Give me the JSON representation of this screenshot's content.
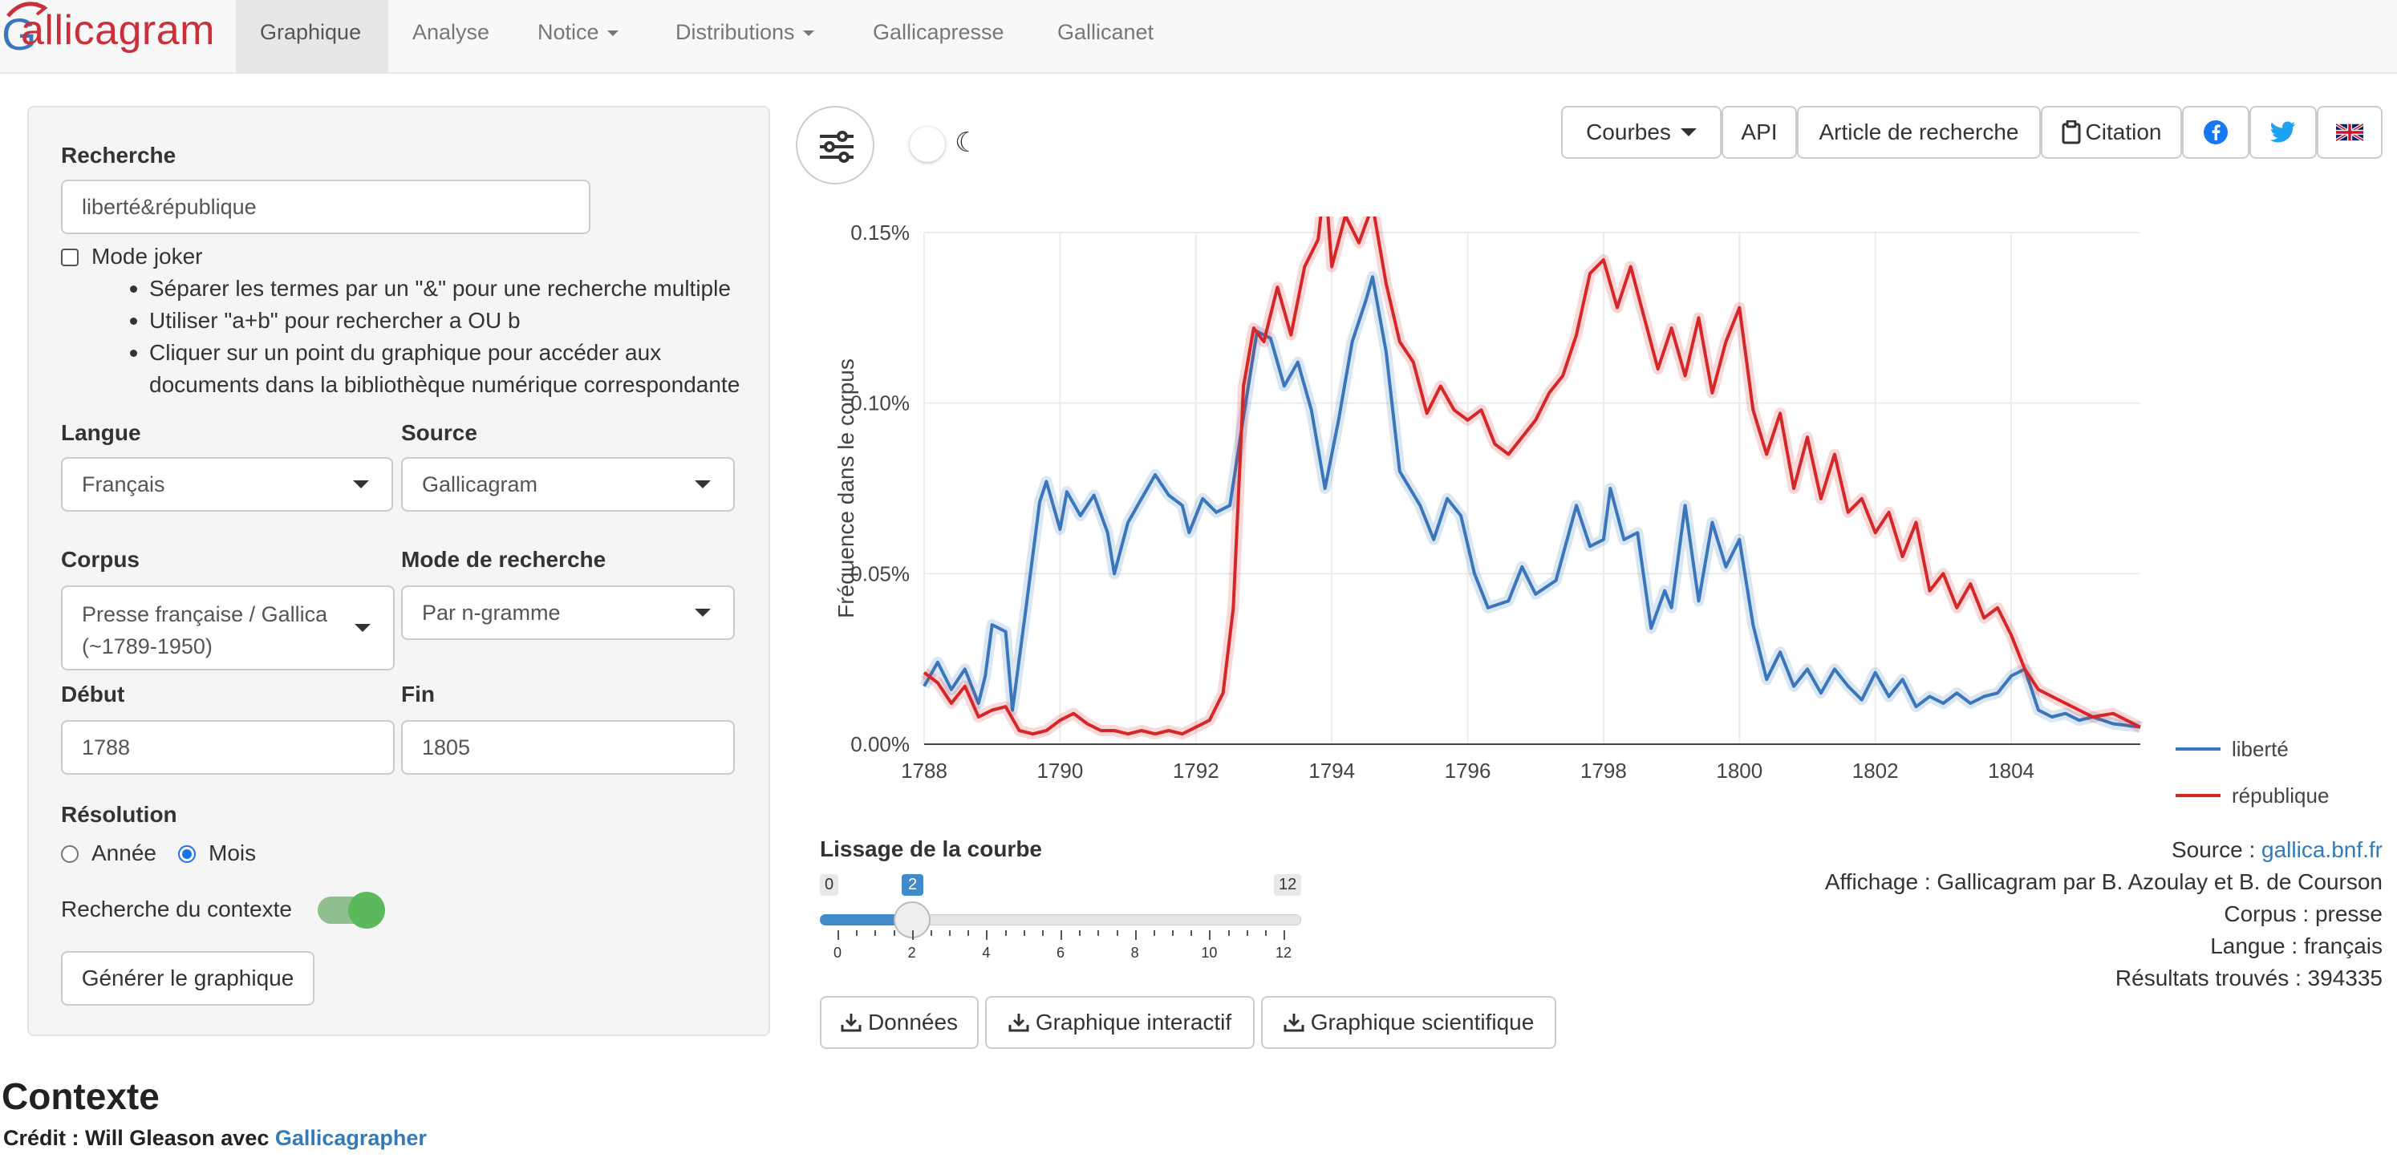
{
  "navbar": {
    "brand": "Gallicagram",
    "items": [
      {
        "label": "Graphique",
        "active": true
      },
      {
        "label": "Analyse"
      },
      {
        "label": "Notice",
        "dropdown": true
      },
      {
        "label": "Distributions",
        "dropdown": true
      },
      {
        "label": "Gallicapresse"
      },
      {
        "label": "Gallicanet"
      }
    ]
  },
  "sidebar": {
    "search_label": "Recherche",
    "search_value": "liberté&république",
    "joker_label": "Mode joker",
    "help": [
      "Séparer les termes par un \"&\" pour une recherche multiple",
      "Utiliser \"a+b\" pour rechercher a OU b",
      "Cliquer sur un point du graphique pour accéder aux",
      "documents dans la bibliothèque numérique correspondante"
    ],
    "langue_label": "Langue",
    "langue_value": "Français",
    "source_label": "Source",
    "source_value": "Gallicagram",
    "corpus_label": "Corpus",
    "corpus_value_line1": "Presse française / Gallica",
    "corpus_value_line2": "(~1789-1950)",
    "mode_label": "Mode de recherche",
    "mode_value": "Par n-gramme",
    "debut_label": "Début",
    "debut_value": "1788",
    "fin_label": "Fin",
    "fin_value": "1805",
    "resolution_label": "Résolution",
    "res_annee": "Année",
    "res_mois": "Mois",
    "res_selected": "Mois",
    "contexte_label": "Recherche du contexte",
    "contexte_on": true,
    "generate_button": "Générer le graphique"
  },
  "toolbar": {
    "courbes": "Courbes",
    "api": "API",
    "article": "Article de recherche",
    "citation": "Citation",
    "moon": "☾",
    "flag_icon": "uk-flag-icon"
  },
  "chart_data": {
    "type": "line",
    "ylabel": "Fréquence dans le corpus",
    "xlabel": "",
    "xlim": [
      1788,
      1805.9
    ],
    "ylim": [
      0,
      0.0015
    ],
    "xticks": [
      1788,
      1790,
      1792,
      1794,
      1796,
      1798,
      1800,
      1802,
      1804
    ],
    "yticks": [
      0,
      0.0005,
      0.001,
      0.0015
    ],
    "ytick_labels": [
      "0.00%",
      "0.05%",
      "0.10%",
      "0.15%"
    ],
    "legend_position": "right",
    "series": [
      {
        "name": "liberté",
        "color": "#3a76bb",
        "points": [
          [
            1788,
            0.00017
          ],
          [
            1788.2,
            0.00024
          ],
          [
            1788.4,
            0.00016
          ],
          [
            1788.6,
            0.00022
          ],
          [
            1788.8,
            0.00012
          ],
          [
            1788.9,
            0.0002
          ],
          [
            1789,
            0.00035
          ],
          [
            1789.2,
            0.00033
          ],
          [
            1789.3,
            0.0001
          ],
          [
            1789.5,
            0.0004
          ],
          [
            1789.7,
            0.00071
          ],
          [
            1789.8,
            0.00077
          ],
          [
            1790,
            0.00063
          ],
          [
            1790.1,
            0.00074
          ],
          [
            1790.3,
            0.00067
          ],
          [
            1790.5,
            0.00073
          ],
          [
            1790.7,
            0.00062
          ],
          [
            1790.8,
            0.0005
          ],
          [
            1791,
            0.00065
          ],
          [
            1791.2,
            0.00072
          ],
          [
            1791.4,
            0.00079
          ],
          [
            1791.6,
            0.00073
          ],
          [
            1791.8,
            0.0007
          ],
          [
            1791.9,
            0.00062
          ],
          [
            1792.1,
            0.00072
          ],
          [
            1792.3,
            0.00068
          ],
          [
            1792.5,
            0.0007
          ],
          [
            1792.7,
            0.00096
          ],
          [
            1792.9,
            0.00121
          ],
          [
            1793.1,
            0.00119
          ],
          [
            1793.3,
            0.00105
          ],
          [
            1793.5,
            0.00112
          ],
          [
            1793.7,
            0.00098
          ],
          [
            1793.9,
            0.00075
          ],
          [
            1794.1,
            0.00095
          ],
          [
            1794.3,
            0.00118
          ],
          [
            1794.5,
            0.0013
          ],
          [
            1794.6,
            0.00137
          ],
          [
            1794.8,
            0.00115
          ],
          [
            1795,
            0.0008
          ],
          [
            1795.3,
            0.0007
          ],
          [
            1795.5,
            0.0006
          ],
          [
            1795.7,
            0.00072
          ],
          [
            1795.9,
            0.00067
          ],
          [
            1796.1,
            0.0005
          ],
          [
            1796.3,
            0.0004
          ],
          [
            1796.6,
            0.00042
          ],
          [
            1796.8,
            0.00052
          ],
          [
            1797,
            0.00044
          ],
          [
            1797.3,
            0.00048
          ],
          [
            1797.6,
            0.0007
          ],
          [
            1797.8,
            0.00058
          ],
          [
            1798,
            0.0006
          ],
          [
            1798.1,
            0.00075
          ],
          [
            1798.3,
            0.0006
          ],
          [
            1798.5,
            0.00062
          ],
          [
            1798.7,
            0.00034
          ],
          [
            1798.9,
            0.00045
          ],
          [
            1799,
            0.0004
          ],
          [
            1799.2,
            0.0007
          ],
          [
            1799.4,
            0.00042
          ],
          [
            1799.6,
            0.00065
          ],
          [
            1799.8,
            0.00052
          ],
          [
            1800,
            0.0006
          ],
          [
            1800.2,
            0.00035
          ],
          [
            1800.4,
            0.00019
          ],
          [
            1800.6,
            0.00027
          ],
          [
            1800.8,
            0.00017
          ],
          [
            1801,
            0.00022
          ],
          [
            1801.2,
            0.00015
          ],
          [
            1801.4,
            0.00022
          ],
          [
            1801.6,
            0.00017
          ],
          [
            1801.8,
            0.00013
          ],
          [
            1802,
            0.00021
          ],
          [
            1802.2,
            0.00014
          ],
          [
            1802.4,
            0.00019
          ],
          [
            1802.6,
            0.00011
          ],
          [
            1802.8,
            0.00014
          ],
          [
            1803,
            0.00012
          ],
          [
            1803.2,
            0.00015
          ],
          [
            1803.4,
            0.00012
          ],
          [
            1803.6,
            0.00014
          ],
          [
            1803.8,
            0.00015
          ],
          [
            1804,
            0.0002
          ],
          [
            1804.2,
            0.00022
          ],
          [
            1804.4,
            0.0001
          ],
          [
            1804.6,
            8e-05
          ],
          [
            1804.8,
            9e-05
          ],
          [
            1805,
            7e-05
          ],
          [
            1805.2,
            8e-05
          ],
          [
            1805.5,
            6e-05
          ],
          [
            1805.9,
            5e-05
          ]
        ]
      },
      {
        "name": "république",
        "color": "#d62728",
        "points": [
          [
            1788,
            0.00021
          ],
          [
            1788.2,
            0.00018
          ],
          [
            1788.4,
            0.00012
          ],
          [
            1788.6,
            0.00017
          ],
          [
            1788.8,
            8e-05
          ],
          [
            1789,
            0.0001
          ],
          [
            1789.2,
            0.00011
          ],
          [
            1789.4,
            4e-05
          ],
          [
            1789.6,
            3e-05
          ],
          [
            1789.8,
            4e-05
          ],
          [
            1790,
            7e-05
          ],
          [
            1790.2,
            9e-05
          ],
          [
            1790.4,
            6e-05
          ],
          [
            1790.6,
            4e-05
          ],
          [
            1790.8,
            4e-05
          ],
          [
            1791,
            3e-05
          ],
          [
            1791.2,
            4e-05
          ],
          [
            1791.4,
            3e-05
          ],
          [
            1791.6,
            4e-05
          ],
          [
            1791.8,
            3e-05
          ],
          [
            1792,
            5e-05
          ],
          [
            1792.2,
            7e-05
          ],
          [
            1792.4,
            0.00015
          ],
          [
            1792.55,
            0.0004
          ],
          [
            1792.7,
            0.00105
          ],
          [
            1792.85,
            0.00122
          ],
          [
            1793,
            0.00118
          ],
          [
            1793.2,
            0.00134
          ],
          [
            1793.4,
            0.0012
          ],
          [
            1793.6,
            0.0014
          ],
          [
            1793.8,
            0.00148
          ],
          [
            1793.9,
            0.00166
          ],
          [
            1794,
            0.0014
          ],
          [
            1794.2,
            0.00155
          ],
          [
            1794.4,
            0.00147
          ],
          [
            1794.6,
            0.00158
          ],
          [
            1794.8,
            0.00135
          ],
          [
            1795,
            0.00118
          ],
          [
            1795.2,
            0.00112
          ],
          [
            1795.4,
            0.00097
          ],
          [
            1795.6,
            0.00105
          ],
          [
            1795.8,
            0.00098
          ],
          [
            1796,
            0.00095
          ],
          [
            1796.2,
            0.00098
          ],
          [
            1796.4,
            0.00088
          ],
          [
            1796.6,
            0.00085
          ],
          [
            1796.8,
            0.0009
          ],
          [
            1797,
            0.00095
          ],
          [
            1797.2,
            0.00103
          ],
          [
            1797.4,
            0.00108
          ],
          [
            1797.6,
            0.0012
          ],
          [
            1797.8,
            0.00138
          ],
          [
            1798,
            0.00142
          ],
          [
            1798.2,
            0.00128
          ],
          [
            1798.4,
            0.0014
          ],
          [
            1798.6,
            0.00125
          ],
          [
            1798.8,
            0.0011
          ],
          [
            1799,
            0.00122
          ],
          [
            1799.2,
            0.00108
          ],
          [
            1799.4,
            0.00125
          ],
          [
            1799.6,
            0.00103
          ],
          [
            1799.8,
            0.00118
          ],
          [
            1800,
            0.00128
          ],
          [
            1800.2,
            0.00098
          ],
          [
            1800.4,
            0.00085
          ],
          [
            1800.6,
            0.00097
          ],
          [
            1800.8,
            0.00075
          ],
          [
            1801,
            0.0009
          ],
          [
            1801.2,
            0.00072
          ],
          [
            1801.4,
            0.00085
          ],
          [
            1801.6,
            0.00068
          ],
          [
            1801.8,
            0.00072
          ],
          [
            1802,
            0.00062
          ],
          [
            1802.2,
            0.00068
          ],
          [
            1802.4,
            0.00055
          ],
          [
            1802.6,
            0.00065
          ],
          [
            1802.8,
            0.00045
          ],
          [
            1803,
            0.0005
          ],
          [
            1803.2,
            0.0004
          ],
          [
            1803.4,
            0.00047
          ],
          [
            1803.6,
            0.00037
          ],
          [
            1803.8,
            0.0004
          ],
          [
            1804,
            0.00032
          ],
          [
            1804.2,
            0.00022
          ],
          [
            1804.4,
            0.00016
          ],
          [
            1804.6,
            0.00014
          ],
          [
            1804.8,
            0.00012
          ],
          [
            1805,
            0.0001
          ],
          [
            1805.2,
            8e-05
          ],
          [
            1805.5,
            9e-05
          ],
          [
            1805.9,
            5e-05
          ]
        ]
      }
    ]
  },
  "slider": {
    "label": "Lissage de la courbe",
    "min": 0,
    "max": 12,
    "value": 2,
    "min_label": "0",
    "max_label": "12",
    "value_label": "2",
    "ticks": [
      "0",
      "2",
      "4",
      "6",
      "8",
      "10",
      "12"
    ]
  },
  "downloads": {
    "donnees": "Données",
    "interactif": "Graphique interactif",
    "scientifique": "Graphique scientifique"
  },
  "info": {
    "source_prefix": "Source : ",
    "source_link": "gallica.bnf.fr",
    "affichage": "Affichage : Gallicagram par B. Azoulay et B. de Courson",
    "corpus": "Corpus : presse",
    "langue": "Langue : français",
    "resultats": "Résultats trouvés : 394335"
  },
  "context": {
    "title": "Contexte",
    "credit_prefix": "Crédit : Will Gleason avec ",
    "credit_link": "Gallicagrapher"
  }
}
